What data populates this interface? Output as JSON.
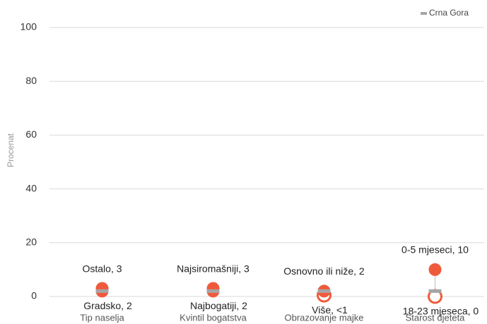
{
  "chart_data": {
    "type": "dot",
    "y_label": "Procenat",
    "categories": [
      "Tip naselja",
      "Kvintil bogatstva",
      "Obrazovanje majke",
      "Starost djeteta"
    ],
    "series": [
      {
        "name": "Crna Gora",
        "color": "#a6a6a6",
        "values": [
          2,
          2,
          2,
          2
        ]
      }
    ],
    "high": {
      "color": "#f05a3c",
      "values": [
        3,
        3,
        2,
        10
      ],
      "value_labels": [
        "Ostalo, 3",
        "Najsiromašniji, 3",
        "Osnovno ili niže, 2",
        "0-5 mjeseci, 10"
      ],
      "filled": [
        true,
        true,
        true,
        true
      ]
    },
    "low": {
      "color": "#f05a3c",
      "values": [
        2,
        2,
        0.5,
        0
      ],
      "value_labels": [
        "Gradsko, 2",
        "Najbogatiji, 2",
        "Više, <1",
        "18-23 mjeseca, 0"
      ],
      "filled": [
        true,
        true,
        false,
        false
      ]
    },
    "ylim": [
      0,
      100
    ],
    "yticks": [
      0,
      20,
      40,
      60,
      80,
      100
    ],
    "grid": true,
    "legend": "top-right"
  }
}
